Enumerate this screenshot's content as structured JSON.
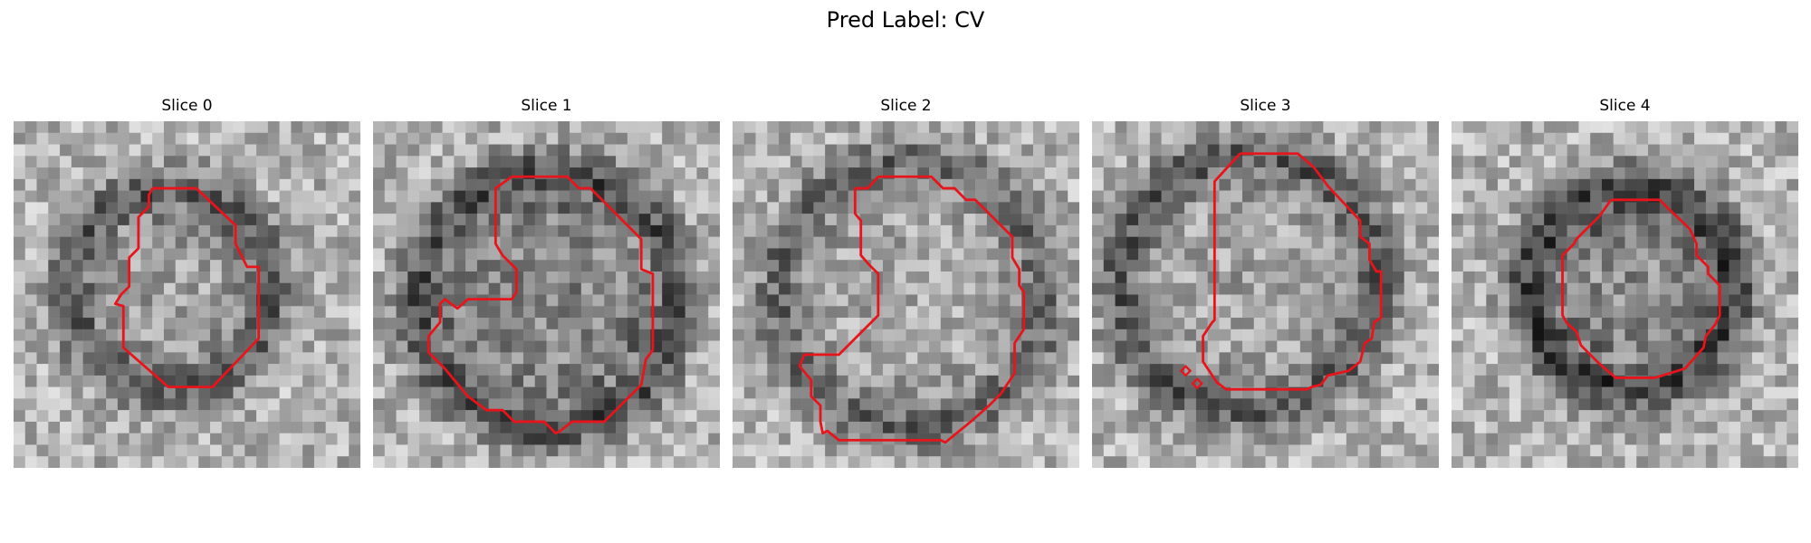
{
  "figure": {
    "title": "Pred Label: CV"
  },
  "slices": [
    {
      "title": "Slice 0"
    },
    {
      "title": "Slice 1"
    },
    {
      "title": "Slice 2"
    },
    {
      "title": "Slice 3"
    },
    {
      "title": "Slice 4"
    }
  ],
  "contour_color": "#e8141c"
}
